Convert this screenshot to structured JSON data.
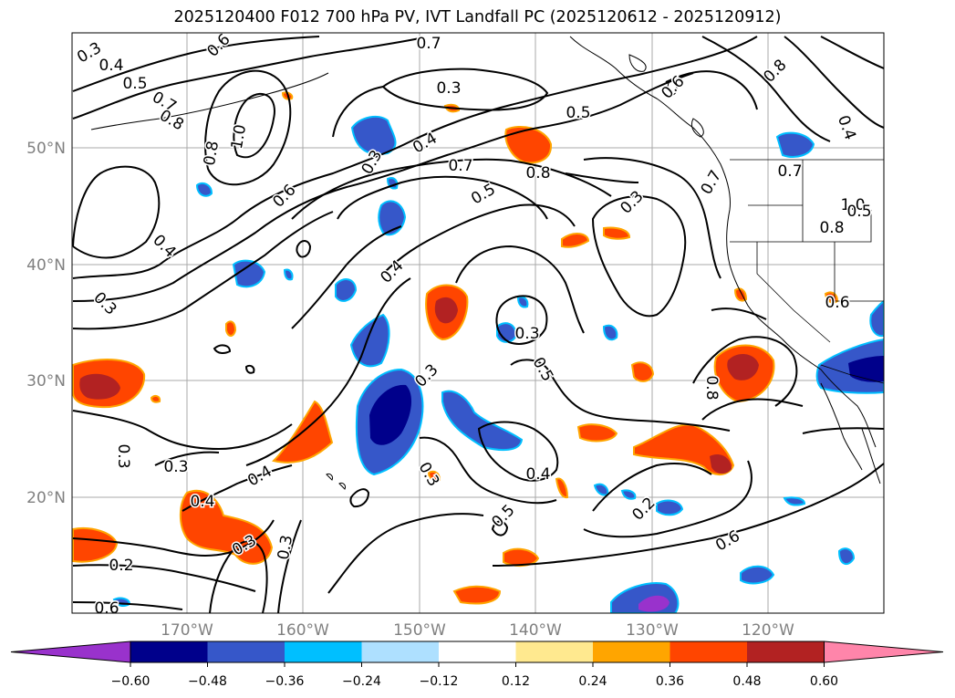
{
  "title": "2025120400 F012 700 hPa PV, IVT Landfall PC (2025120612 - 2025120912)",
  "lat_labels": [
    "50°N",
    "40°N",
    "30°N",
    "20°N"
  ],
  "lon_labels": [
    "170°W",
    "160°W",
    "150°W",
    "140°W",
    "130°W",
    "120°W"
  ],
  "colorbar": {
    "ticks": [
      "−0.60",
      "−0.48",
      "−0.36",
      "−0.24",
      "−0.12",
      "0.12",
      "0.24",
      "0.36",
      "0.48",
      "0.60"
    ],
    "colors": [
      "#9932cc",
      "#00008b",
      "#3657c9",
      "#00bfff",
      "#aee0ff",
      "#ffffff",
      "#ffe98f",
      "#ffa500",
      "#ff4500",
      "#b22222",
      "#ff85aa"
    ]
  },
  "contour_labels": [
    {
      "text": "0.3"
    },
    {
      "text": "0.4"
    },
    {
      "text": "0.5"
    },
    {
      "text": "0.7"
    },
    {
      "text": "0.8"
    },
    {
      "text": "1.0"
    },
    {
      "text": "0.8"
    },
    {
      "text": "0.6"
    },
    {
      "text": "0.8"
    },
    {
      "text": "0.7"
    },
    {
      "text": "0.3"
    },
    {
      "text": "0.5"
    },
    {
      "text": "0.4"
    },
    {
      "text": "0.7"
    },
    {
      "text": "0.5"
    },
    {
      "text": "0.6"
    },
    {
      "text": "0.3"
    },
    {
      "text": "0.4"
    },
    {
      "text": "0.3"
    },
    {
      "text": "0.3"
    },
    {
      "text": "0.4"
    },
    {
      "text": "0.3"
    },
    {
      "text": "0.3"
    },
    {
      "text": "0.5"
    },
    {
      "text": "0.3"
    },
    {
      "text": "0.4"
    },
    {
      "text": "0.3"
    },
    {
      "text": "0.4"
    },
    {
      "text": "0.2"
    },
    {
      "text": "0.4"
    },
    {
      "text": "0.3"
    },
    {
      "text": "0.3"
    },
    {
      "text": "0.3"
    },
    {
      "text": "0.5"
    },
    {
      "text": "0.2"
    },
    {
      "text": "0.6"
    },
    {
      "text": "0.6"
    },
    {
      "text": "0.8"
    },
    {
      "text": "0.4"
    },
    {
      "text": "0.6"
    },
    {
      "text": "1.0"
    },
    {
      "text": "0.7"
    },
    {
      "text": "0.8"
    },
    {
      "text": "0.5"
    },
    {
      "text": "0.6"
    },
    {
      "text": "0.7"
    },
    {
      "text": "0.8"
    }
  ]
}
